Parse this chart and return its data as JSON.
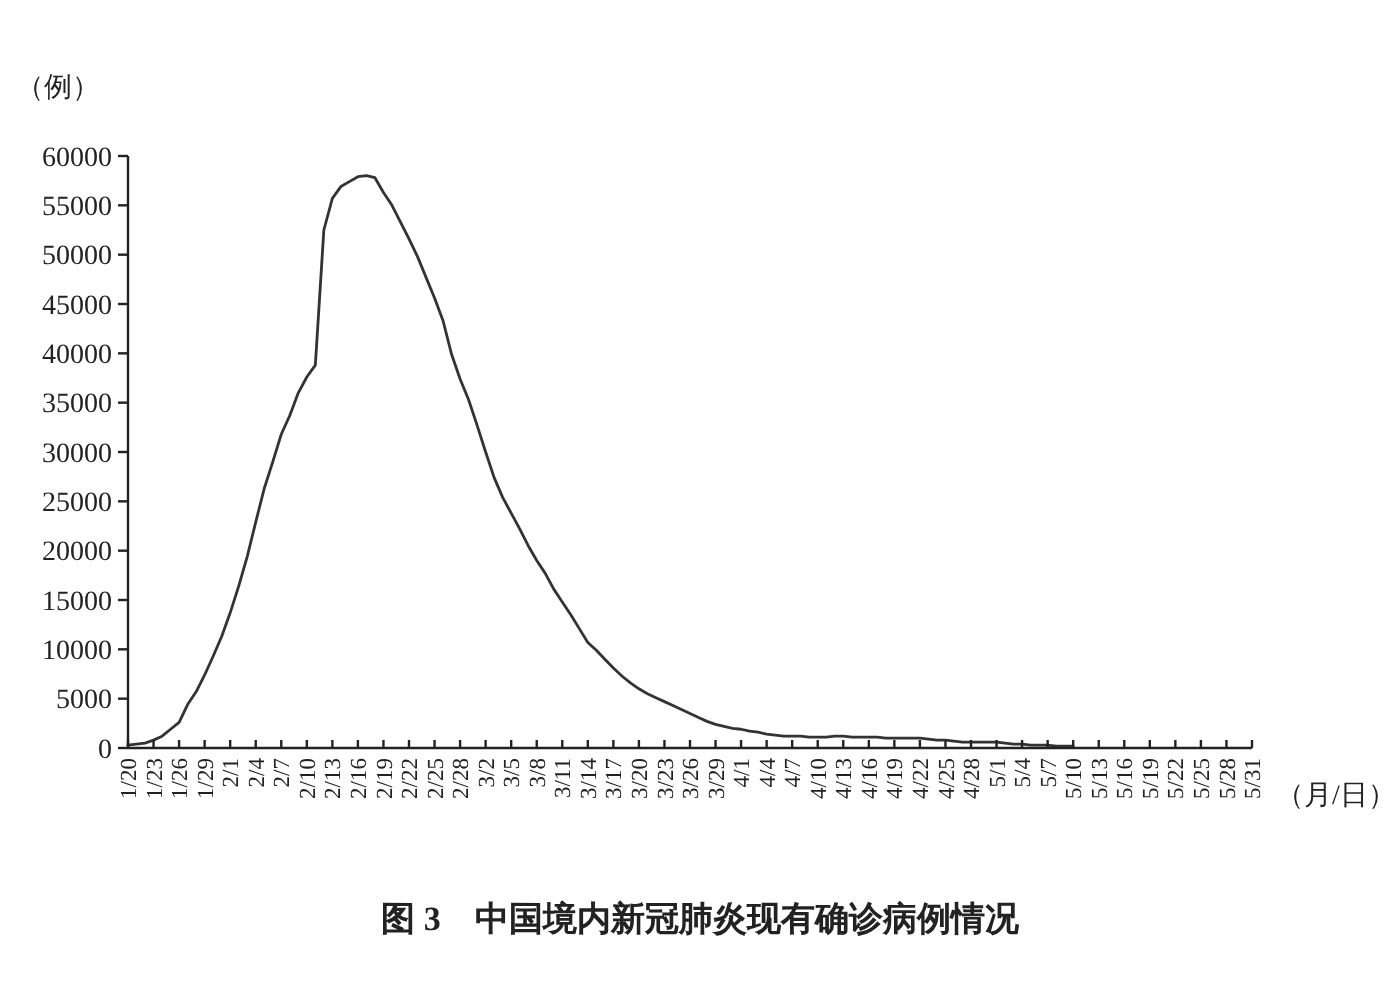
{
  "chart_data": {
    "type": "line",
    "ylabel": "（例）",
    "xlabel": "（月/日）",
    "annotations": [
      "图 3　中国境内新冠肺炎现有确诊病例情况"
    ],
    "color": "#333333",
    "x": [
      "--01-20",
      "--01-21",
      "--01-22",
      "--01-23",
      "--01-24",
      "--01-25",
      "--01-26",
      "--01-27",
      "--01-28",
      "--01-29",
      "--01-30",
      "--01-31",
      "--02-01",
      "--02-02",
      "--02-03",
      "--02-04",
      "--02-05",
      "--02-06",
      "--02-07",
      "--02-08",
      "--02-09",
      "--02-10",
      "--02-11",
      "--02-12",
      "--02-13",
      "--02-14",
      "--02-15",
      "--02-16",
      "--02-17",
      "--02-18",
      "--02-19",
      "--02-20",
      "--02-21",
      "--02-22",
      "--02-23",
      "--02-24",
      "--02-25",
      "--02-26",
      "--02-27",
      "--02-28",
      "--02-29",
      "--03-01",
      "--03-02",
      "--03-03",
      "--03-04",
      "--03-05",
      "--03-06",
      "--03-07",
      "--03-08",
      "--03-09",
      "--03-10",
      "--03-11",
      "--03-12",
      "--03-13",
      "--03-14",
      "--03-15",
      "--03-16",
      "--03-17",
      "--03-18",
      "--03-19",
      "--03-20",
      "--03-21",
      "--03-22",
      "--03-23",
      "--03-24",
      "--03-25",
      "--03-26",
      "--03-27",
      "--03-28",
      "--03-29",
      "--03-30",
      "--03-31",
      "--04-01",
      "--04-02",
      "--04-03",
      "--04-04",
      "--04-05",
      "--04-06",
      "--04-07",
      "--04-08",
      "--04-09",
      "--04-10",
      "--04-11",
      "--04-12",
      "--04-13",
      "--04-14",
      "--04-15",
      "--04-16",
      "--04-17",
      "--04-18",
      "--04-19",
      "--04-20",
      "--04-21",
      "--04-22",
      "--04-23",
      "--04-24",
      "--04-25",
      "--04-26",
      "--04-27",
      "--04-28",
      "--04-29",
      "--04-30",
      "--05-01",
      "--05-02",
      "--05-03",
      "--05-04",
      "--05-05",
      "--05-06",
      "--05-07",
      "--05-08",
      "--05-09",
      "--05-10"
    ],
    "values": [
      300,
      400,
      500,
      800,
      1200,
      1900,
      2600,
      4400,
      5700,
      7400,
      9300,
      11300,
      13700,
      16400,
      19400,
      22900,
      26300,
      29000,
      31800,
      33700,
      36000,
      37600,
      38800,
      52500,
      55700,
      56900,
      57400,
      57900,
      58000,
      57800,
      56300,
      55000,
      53300,
      51600,
      49800,
      47700,
      45600,
      43300,
      39900,
      37400,
      35300,
      32700,
      30000,
      27400,
      25400,
      23800,
      22200,
      20500,
      19000,
      17700,
      16100,
      14800,
      13500,
      12100,
      10700,
      9900,
      9000,
      8100,
      7300,
      6600,
      6000,
      5500,
      5100,
      4700,
      4300,
      3900,
      3500,
      3100,
      2700,
      2400,
      2200,
      2000,
      1900,
      1700,
      1600,
      1400,
      1300,
      1200,
      1200,
      1200,
      1100,
      1100,
      1100,
      1200,
      1200,
      1100,
      1100,
      1100,
      1100,
      1000,
      1000,
      1000,
      1000,
      1000,
      900,
      800,
      800,
      700,
      600,
      600,
      600,
      600,
      600,
      500,
      400,
      400,
      300,
      300,
      300,
      200,
      200,
      200
    ],
    "xlim": [
      "--01-20",
      "--05-31"
    ],
    "xticks": [
      {
        "value": "--01-20",
        "label": "1/20"
      },
      {
        "value": "--01-23",
        "label": "1/23"
      },
      {
        "value": "--01-26",
        "label": "1/26"
      },
      {
        "value": "--01-29",
        "label": "1/29"
      },
      {
        "value": "--02-01",
        "label": "2/1"
      },
      {
        "value": "--02-04",
        "label": "2/4"
      },
      {
        "value": "--02-07",
        "label": "2/7"
      },
      {
        "value": "--02-10",
        "label": "2/10"
      },
      {
        "value": "--02-13",
        "label": "2/13"
      },
      {
        "value": "--02-16",
        "label": "2/16"
      },
      {
        "value": "--02-19",
        "label": "2/19"
      },
      {
        "value": "--02-22",
        "label": "2/22"
      },
      {
        "value": "--02-25",
        "label": "2/25"
      },
      {
        "value": "--02-28",
        "label": "2/28"
      },
      {
        "value": "--03-02",
        "label": "3/2"
      },
      {
        "value": "--03-05",
        "label": "3/5"
      },
      {
        "value": "--03-08",
        "label": "3/8"
      },
      {
        "value": "--03-11",
        "label": "3/11"
      },
      {
        "value": "--03-14",
        "label": "3/14"
      },
      {
        "value": "--03-17",
        "label": "3/17"
      },
      {
        "value": "--03-20",
        "label": "3/20"
      },
      {
        "value": "--03-23",
        "label": "3/23"
      },
      {
        "value": "--03-26",
        "label": "3/26"
      },
      {
        "value": "--03-29",
        "label": "3/29"
      },
      {
        "value": "--04-01",
        "label": "4/1"
      },
      {
        "value": "--04-04",
        "label": "4/4"
      },
      {
        "value": "--04-07",
        "label": "4/7"
      },
      {
        "value": "--04-10",
        "label": "4/10"
      },
      {
        "value": "--04-13",
        "label": "4/13"
      },
      {
        "value": "--04-16",
        "label": "4/16"
      },
      {
        "value": "--04-19",
        "label": "4/19"
      },
      {
        "value": "--04-22",
        "label": "4/22"
      },
      {
        "value": "--04-25",
        "label": "4/25"
      },
      {
        "value": "--04-28",
        "label": "4/28"
      },
      {
        "value": "--05-01",
        "label": "5/1"
      },
      {
        "value": "--05-04",
        "label": "5/4"
      },
      {
        "value": "--05-07",
        "label": "5/7"
      },
      {
        "value": "--05-10",
        "label": "5/10"
      },
      {
        "value": "--05-13",
        "label": "5/13"
      },
      {
        "value": "--05-16",
        "label": "5/16"
      },
      {
        "value": "--05-19",
        "label": "5/19"
      },
      {
        "value": "--05-22",
        "label": "5/22"
      },
      {
        "value": "--05-25",
        "label": "5/25"
      },
      {
        "value": "--05-28",
        "label": "5/28"
      },
      {
        "value": "--05-31",
        "label": "5/31"
      }
    ],
    "ylim": [
      0,
      60000
    ],
    "yticks": [
      0,
      5000,
      10000,
      15000,
      20000,
      25000,
      30000,
      35000,
      40000,
      45000,
      50000,
      55000,
      60000
    ]
  }
}
